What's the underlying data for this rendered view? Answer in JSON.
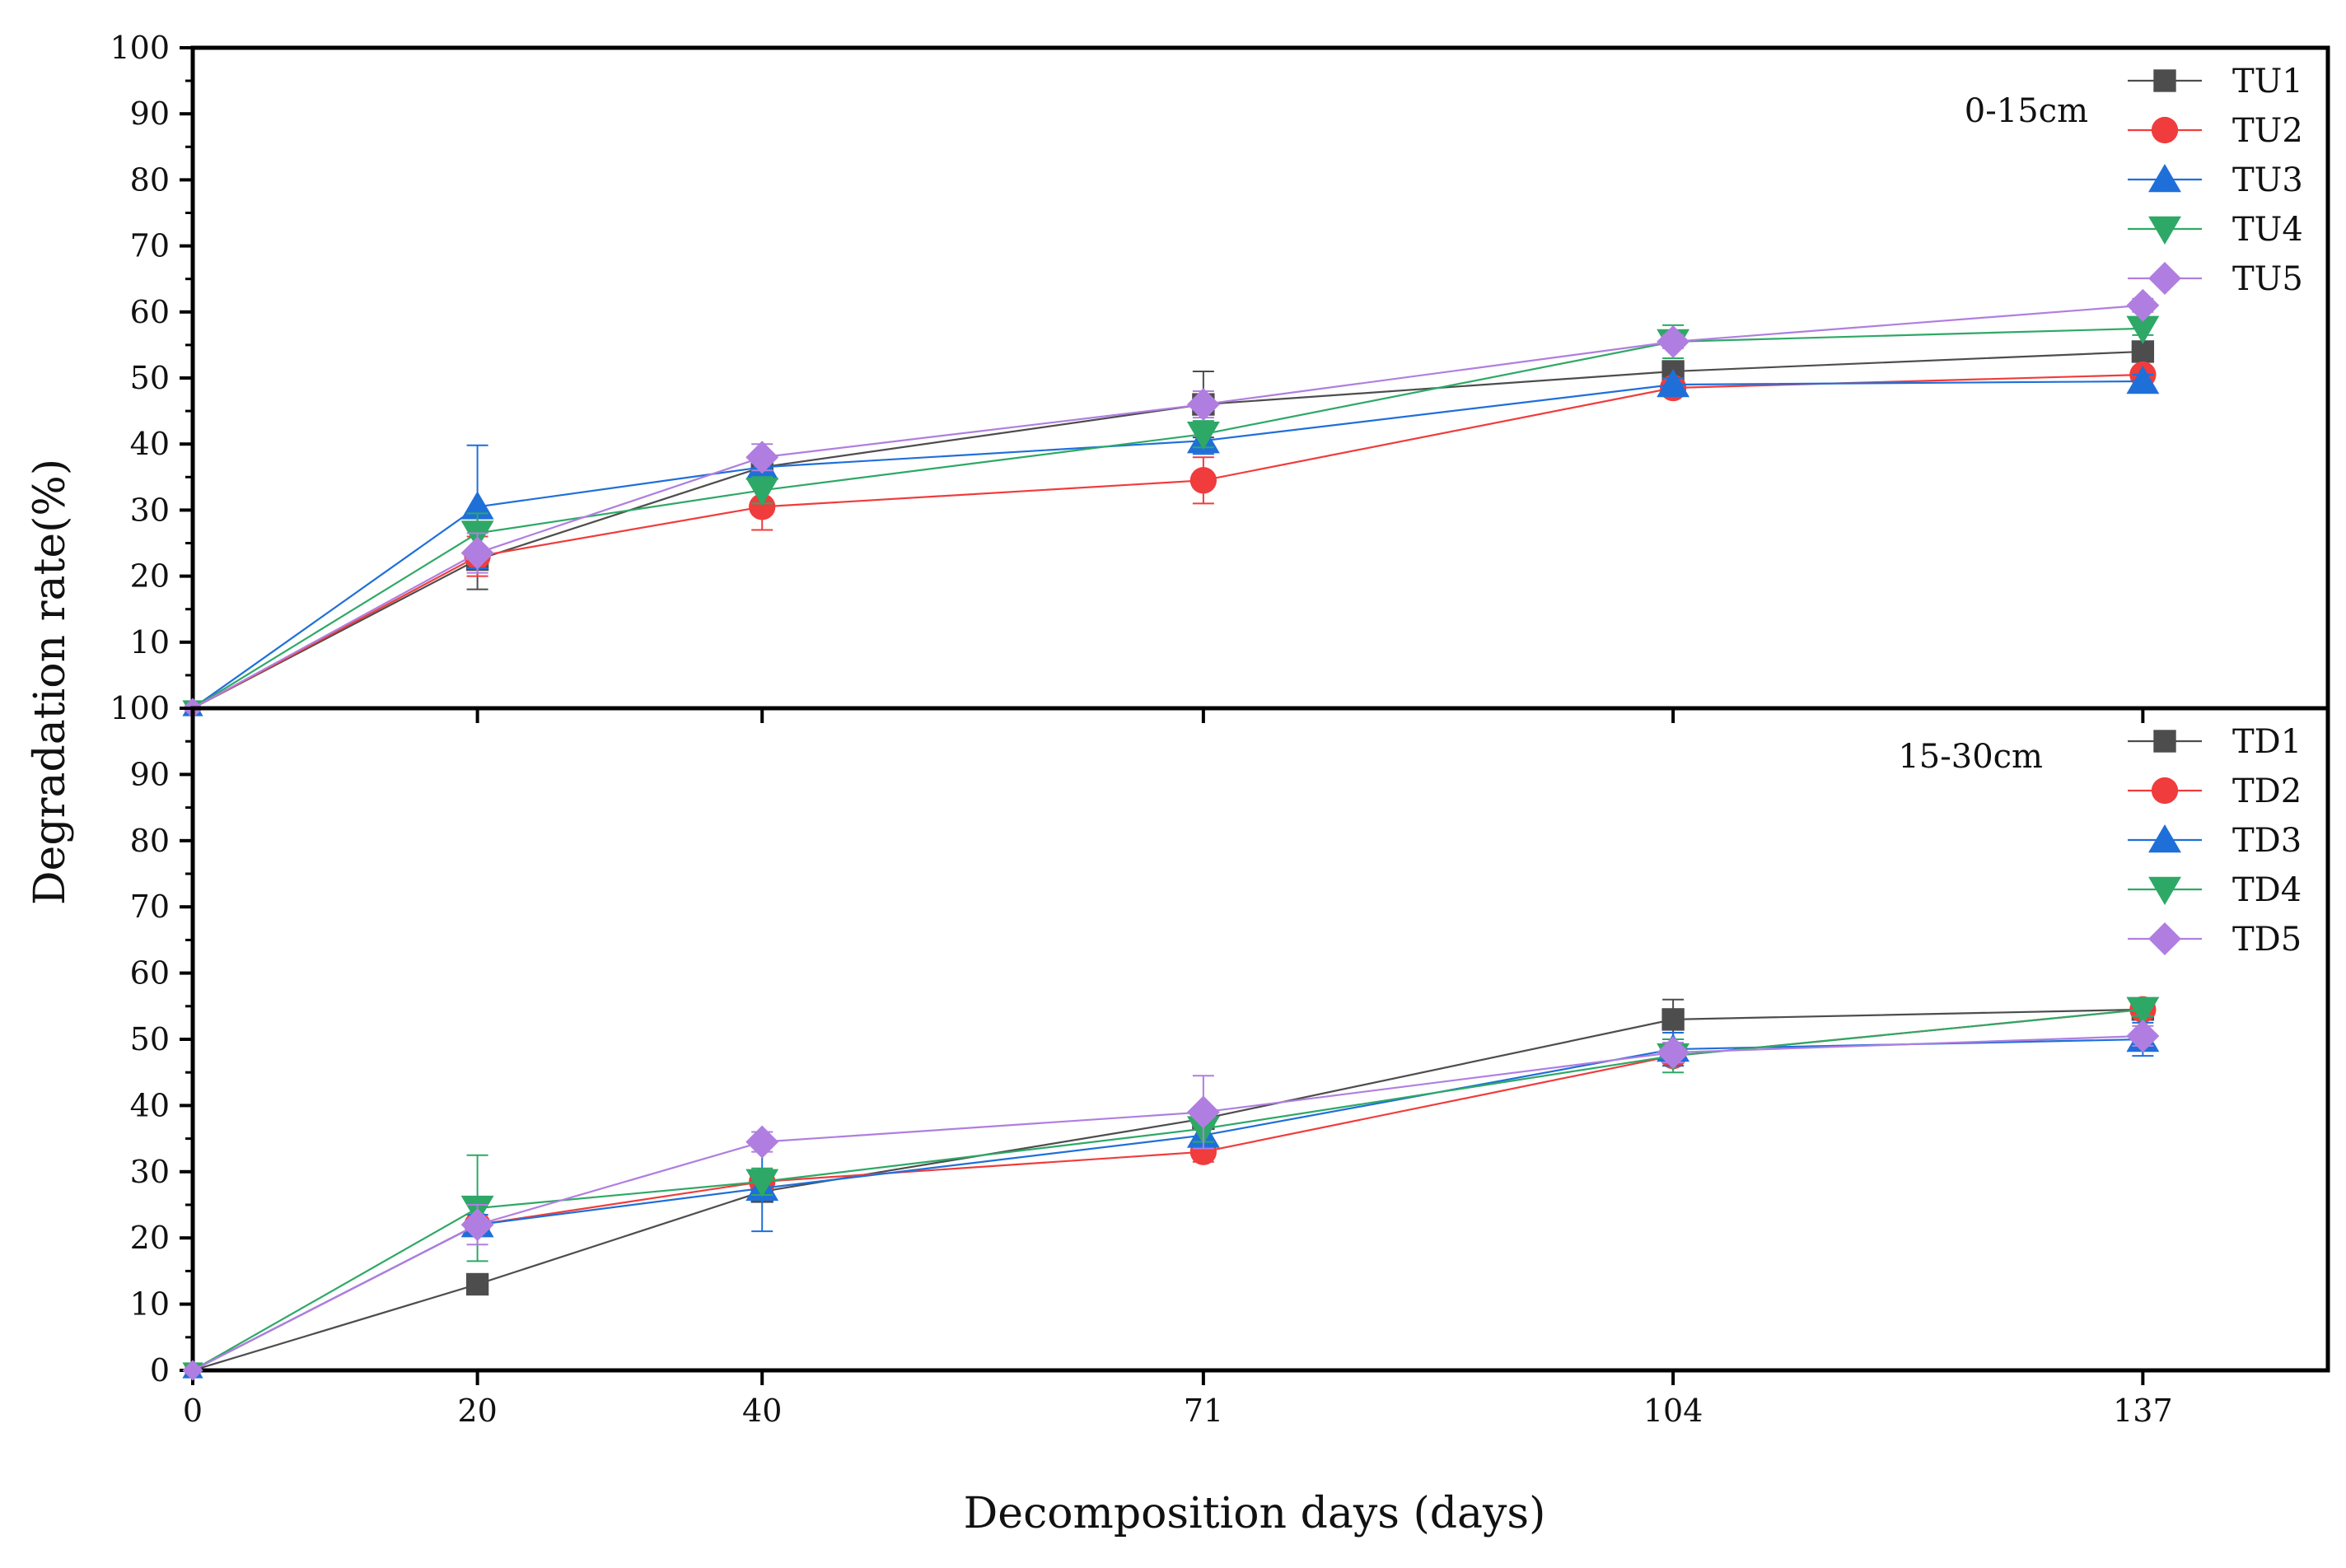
{
  "chart_data": [
    {
      "type": "line",
      "panel": "top",
      "depth_label": "0-15cm",
      "x": [
        0,
        20,
        40,
        71,
        104,
        137
      ],
      "x_tick_labels": [
        "0",
        "20",
        "40",
        "71",
        "104",
        "137"
      ],
      "xlim": [
        0,
        150
      ],
      "ylim": [
        0,
        100
      ],
      "y_ticks": [
        0,
        10,
        20,
        30,
        40,
        50,
        60,
        70,
        80,
        90,
        100
      ],
      "y_tick_labels": [
        "0",
        "10",
        "20",
        "30",
        "40",
        "50",
        "60",
        "70",
        "80",
        "90",
        "100"
      ],
      "legend_position": "top-right",
      "series": [
        {
          "name": "TU1",
          "color": "#4d4d4d",
          "marker": "square",
          "values": [
            0,
            22.5,
            36.5,
            46,
            51,
            54
          ],
          "errors": [
            0,
            4.5,
            1.5,
            5,
            1.5,
            1.5
          ]
        },
        {
          "name": "TU2",
          "color": "#f03c3c",
          "marker": "circle",
          "values": [
            0,
            23,
            30.5,
            34.5,
            48.5,
            50.5
          ],
          "errors": [
            0,
            3,
            3.5,
            3.5,
            1,
            1
          ]
        },
        {
          "name": "TU3",
          "color": "#1f6fd9",
          "marker": "triangle-up",
          "values": [
            0,
            30.5,
            36.5,
            40.5,
            49,
            49.5
          ],
          "errors": [
            0,
            9.3,
            1.5,
            2,
            1,
            1
          ]
        },
        {
          "name": "TU4",
          "color": "#2ea866",
          "marker": "triangle-down",
          "values": [
            0,
            26.5,
            33,
            41.5,
            55.5,
            57.5
          ],
          "errors": [
            0,
            3,
            2,
            2,
            2.5,
            1
          ]
        },
        {
          "name": "TU5",
          "color": "#b07ee0",
          "marker": "diamond",
          "values": [
            0,
            23.5,
            38,
            46,
            55.5,
            61
          ],
          "errors": [
            0,
            3,
            2,
            2,
            1,
            1
          ]
        }
      ]
    },
    {
      "type": "line",
      "panel": "bottom",
      "depth_label": "15-30cm",
      "x": [
        0,
        20,
        40,
        71,
        104,
        137
      ],
      "x_tick_labels": [
        "0",
        "20",
        "40",
        "71",
        "104",
        "137"
      ],
      "xlim": [
        0,
        150
      ],
      "ylim": [
        0,
        100
      ],
      "y_ticks": [
        0,
        10,
        20,
        30,
        40,
        50,
        60,
        70,
        80,
        90,
        100
      ],
      "y_tick_labels": [
        "0",
        "10",
        "20",
        "30",
        "40",
        "50",
        "60",
        "70",
        "80",
        "90",
        "100"
      ],
      "legend_position": "top-right",
      "series": [
        {
          "name": "TD1",
          "color": "#4d4d4d",
          "marker": "square",
          "values": [
            0,
            13,
            27,
            38,
            53,
            54.5
          ],
          "errors": [
            0,
            1,
            1.5,
            1.5,
            3,
            1.5
          ]
        },
        {
          "name": "TD2",
          "color": "#f03c3c",
          "marker": "circle",
          "values": [
            0,
            22,
            28.5,
            33,
            47.5,
            54.5
          ],
          "errors": [
            0,
            1.5,
            1.5,
            1.5,
            1.5,
            1
          ]
        },
        {
          "name": "TD3",
          "color": "#1f6fd9",
          "marker": "triangle-up",
          "values": [
            0,
            22,
            27.5,
            35.5,
            48.5,
            50
          ],
          "errors": [
            0,
            1.5,
            6.5,
            2,
            2.5,
            2.5
          ]
        },
        {
          "name": "TD4",
          "color": "#2ea866",
          "marker": "triangle-down",
          "values": [
            0,
            24.5,
            28.5,
            36.5,
            47.5,
            54.5
          ],
          "errors": [
            0,
            8,
            2,
            2,
            2.5,
            1
          ]
        },
        {
          "name": "TD5",
          "color": "#b07ee0",
          "marker": "diamond",
          "values": [
            0,
            22,
            34.5,
            39,
            48,
            50.5
          ],
          "errors": [
            0,
            3,
            1.5,
            5.5,
            1.5,
            1.5
          ]
        }
      ]
    }
  ],
  "axes": {
    "ylabel": "Degradation rate(%)",
    "xlabel": "Decomposition days (days)"
  }
}
